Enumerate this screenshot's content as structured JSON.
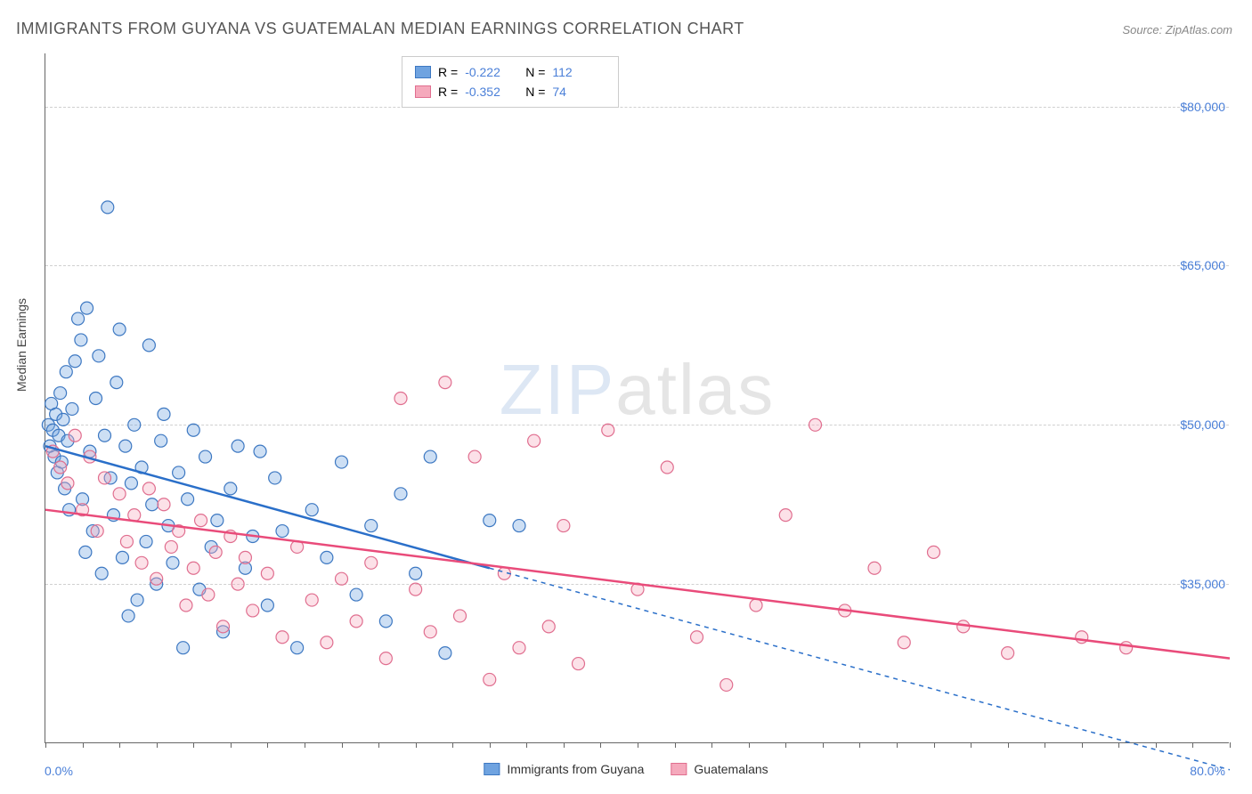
{
  "title": "IMMIGRANTS FROM GUYANA VS GUATEMALAN MEDIAN EARNINGS CORRELATION CHART",
  "source": "Source: ZipAtlas.com",
  "ylabel": "Median Earnings",
  "watermark_bold": "ZIP",
  "watermark_thin": "atlas",
  "chart": {
    "type": "scatter",
    "background_color": "#ffffff",
    "grid_color": "#d0d0d0",
    "axis_color": "#666666",
    "xlim": [
      0,
      80
    ],
    "ylim": [
      20000,
      85000
    ],
    "x_tick_labels": [
      "0.0%",
      "80.0%"
    ],
    "y_ticks": [
      35000,
      50000,
      65000,
      80000
    ],
    "y_tick_labels": [
      "$35,000",
      "$50,000",
      "$65,000",
      "$80,000"
    ],
    "x_minor_tick_step": 2.5,
    "tick_label_color": "#4a7fd8",
    "label_fontsize": 14,
    "title_fontsize": 18,
    "title_color": "#555555",
    "marker_radius": 7,
    "marker_fill_opacity": 0.35,
    "marker_stroke_width": 1.2,
    "line_width": 2.5,
    "dash_pattern": "5,5",
    "series": [
      {
        "name": "Immigrants from Guyana",
        "color": "#6fa3e0",
        "stroke": "#3d78c2",
        "line_color": "#2a6fc9",
        "R": "-0.222",
        "N": "112",
        "trend_solid": [
          [
            0,
            48000
          ],
          [
            30,
            36500
          ]
        ],
        "trend_dashed": [
          [
            30,
            36500
          ],
          [
            80,
            17500
          ]
        ],
        "points": [
          [
            0.2,
            50000
          ],
          [
            0.3,
            48000
          ],
          [
            0.4,
            52000
          ],
          [
            0.5,
            49500
          ],
          [
            0.6,
            47000
          ],
          [
            0.7,
            51000
          ],
          [
            0.8,
            45500
          ],
          [
            0.9,
            49000
          ],
          [
            1.0,
            53000
          ],
          [
            1.1,
            46500
          ],
          [
            1.2,
            50500
          ],
          [
            1.3,
            44000
          ],
          [
            1.4,
            55000
          ],
          [
            1.5,
            48500
          ],
          [
            1.6,
            42000
          ],
          [
            1.8,
            51500
          ],
          [
            2.0,
            56000
          ],
          [
            2.2,
            60000
          ],
          [
            2.4,
            58000
          ],
          [
            2.5,
            43000
          ],
          [
            2.7,
            38000
          ],
          [
            2.8,
            61000
          ],
          [
            3.0,
            47500
          ],
          [
            3.2,
            40000
          ],
          [
            3.4,
            52500
          ],
          [
            3.6,
            56500
          ],
          [
            3.8,
            36000
          ],
          [
            4.0,
            49000
          ],
          [
            4.2,
            70500
          ],
          [
            4.4,
            45000
          ],
          [
            4.6,
            41500
          ],
          [
            4.8,
            54000
          ],
          [
            5.0,
            59000
          ],
          [
            5.2,
            37500
          ],
          [
            5.4,
            48000
          ],
          [
            5.6,
            32000
          ],
          [
            5.8,
            44500
          ],
          [
            6.0,
            50000
          ],
          [
            6.2,
            33500
          ],
          [
            6.5,
            46000
          ],
          [
            6.8,
            39000
          ],
          [
            7.0,
            57500
          ],
          [
            7.2,
            42500
          ],
          [
            7.5,
            35000
          ],
          [
            7.8,
            48500
          ],
          [
            8.0,
            51000
          ],
          [
            8.3,
            40500
          ],
          [
            8.6,
            37000
          ],
          [
            9.0,
            45500
          ],
          [
            9.3,
            29000
          ],
          [
            9.6,
            43000
          ],
          [
            10.0,
            49500
          ],
          [
            10.4,
            34500
          ],
          [
            10.8,
            47000
          ],
          [
            11.2,
            38500
          ],
          [
            11.6,
            41000
          ],
          [
            12.0,
            30500
          ],
          [
            12.5,
            44000
          ],
          [
            13.0,
            48000
          ],
          [
            13.5,
            36500
          ],
          [
            14.0,
            39500
          ],
          [
            14.5,
            47500
          ],
          [
            15.0,
            33000
          ],
          [
            15.5,
            45000
          ],
          [
            16.0,
            40000
          ],
          [
            17.0,
            29000
          ],
          [
            18.0,
            42000
          ],
          [
            19.0,
            37500
          ],
          [
            20.0,
            46500
          ],
          [
            21.0,
            34000
          ],
          [
            22.0,
            40500
          ],
          [
            23.0,
            31500
          ],
          [
            24.0,
            43500
          ],
          [
            25.0,
            36000
          ],
          [
            26.0,
            47000
          ],
          [
            27.0,
            28500
          ],
          [
            30.0,
            41000
          ],
          [
            32.0,
            40500
          ]
        ]
      },
      {
        "name": "Guatemalans",
        "color": "#f5a9bc",
        "stroke": "#e06e8f",
        "line_color": "#e94b7a",
        "R": "-0.352",
        "N": "74",
        "trend_solid": [
          [
            0,
            42000
          ],
          [
            80,
            28000
          ]
        ],
        "trend_dashed": null,
        "points": [
          [
            0.5,
            47500
          ],
          [
            1.0,
            46000
          ],
          [
            1.5,
            44500
          ],
          [
            2.0,
            49000
          ],
          [
            2.5,
            42000
          ],
          [
            3.0,
            47000
          ],
          [
            3.5,
            40000
          ],
          [
            4.0,
            45000
          ],
          [
            5.0,
            43500
          ],
          [
            5.5,
            39000
          ],
          [
            6.0,
            41500
          ],
          [
            6.5,
            37000
          ],
          [
            7.0,
            44000
          ],
          [
            7.5,
            35500
          ],
          [
            8.0,
            42500
          ],
          [
            8.5,
            38500
          ],
          [
            9.0,
            40000
          ],
          [
            9.5,
            33000
          ],
          [
            10.0,
            36500
          ],
          [
            10.5,
            41000
          ],
          [
            11.0,
            34000
          ],
          [
            11.5,
            38000
          ],
          [
            12.0,
            31000
          ],
          [
            12.5,
            39500
          ],
          [
            13.0,
            35000
          ],
          [
            13.5,
            37500
          ],
          [
            14.0,
            32500
          ],
          [
            15.0,
            36000
          ],
          [
            16.0,
            30000
          ],
          [
            17.0,
            38500
          ],
          [
            18.0,
            33500
          ],
          [
            19.0,
            29500
          ],
          [
            20.0,
            35500
          ],
          [
            21.0,
            31500
          ],
          [
            22.0,
            37000
          ],
          [
            23.0,
            28000
          ],
          [
            24.0,
            52500
          ],
          [
            25.0,
            34500
          ],
          [
            26.0,
            30500
          ],
          [
            27.0,
            54000
          ],
          [
            28.0,
            32000
          ],
          [
            29.0,
            47000
          ],
          [
            30.0,
            26000
          ],
          [
            31.0,
            36000
          ],
          [
            32.0,
            29000
          ],
          [
            33.0,
            48500
          ],
          [
            34.0,
            31000
          ],
          [
            35.0,
            40500
          ],
          [
            36.0,
            27500
          ],
          [
            38.0,
            49500
          ],
          [
            40.0,
            34500
          ],
          [
            42.0,
            46000
          ],
          [
            44.0,
            30000
          ],
          [
            46.0,
            25500
          ],
          [
            48.0,
            33000
          ],
          [
            50.0,
            41500
          ],
          [
            52.0,
            50000
          ],
          [
            54.0,
            32500
          ],
          [
            56.0,
            36500
          ],
          [
            58.0,
            29500
          ],
          [
            60.0,
            38000
          ],
          [
            62.0,
            31000
          ],
          [
            65.0,
            28500
          ],
          [
            70.0,
            30000
          ],
          [
            73.0,
            29000
          ]
        ]
      }
    ]
  },
  "legend_top": {
    "r_label": "R =",
    "n_label": "N ="
  },
  "legend_bottom": {}
}
